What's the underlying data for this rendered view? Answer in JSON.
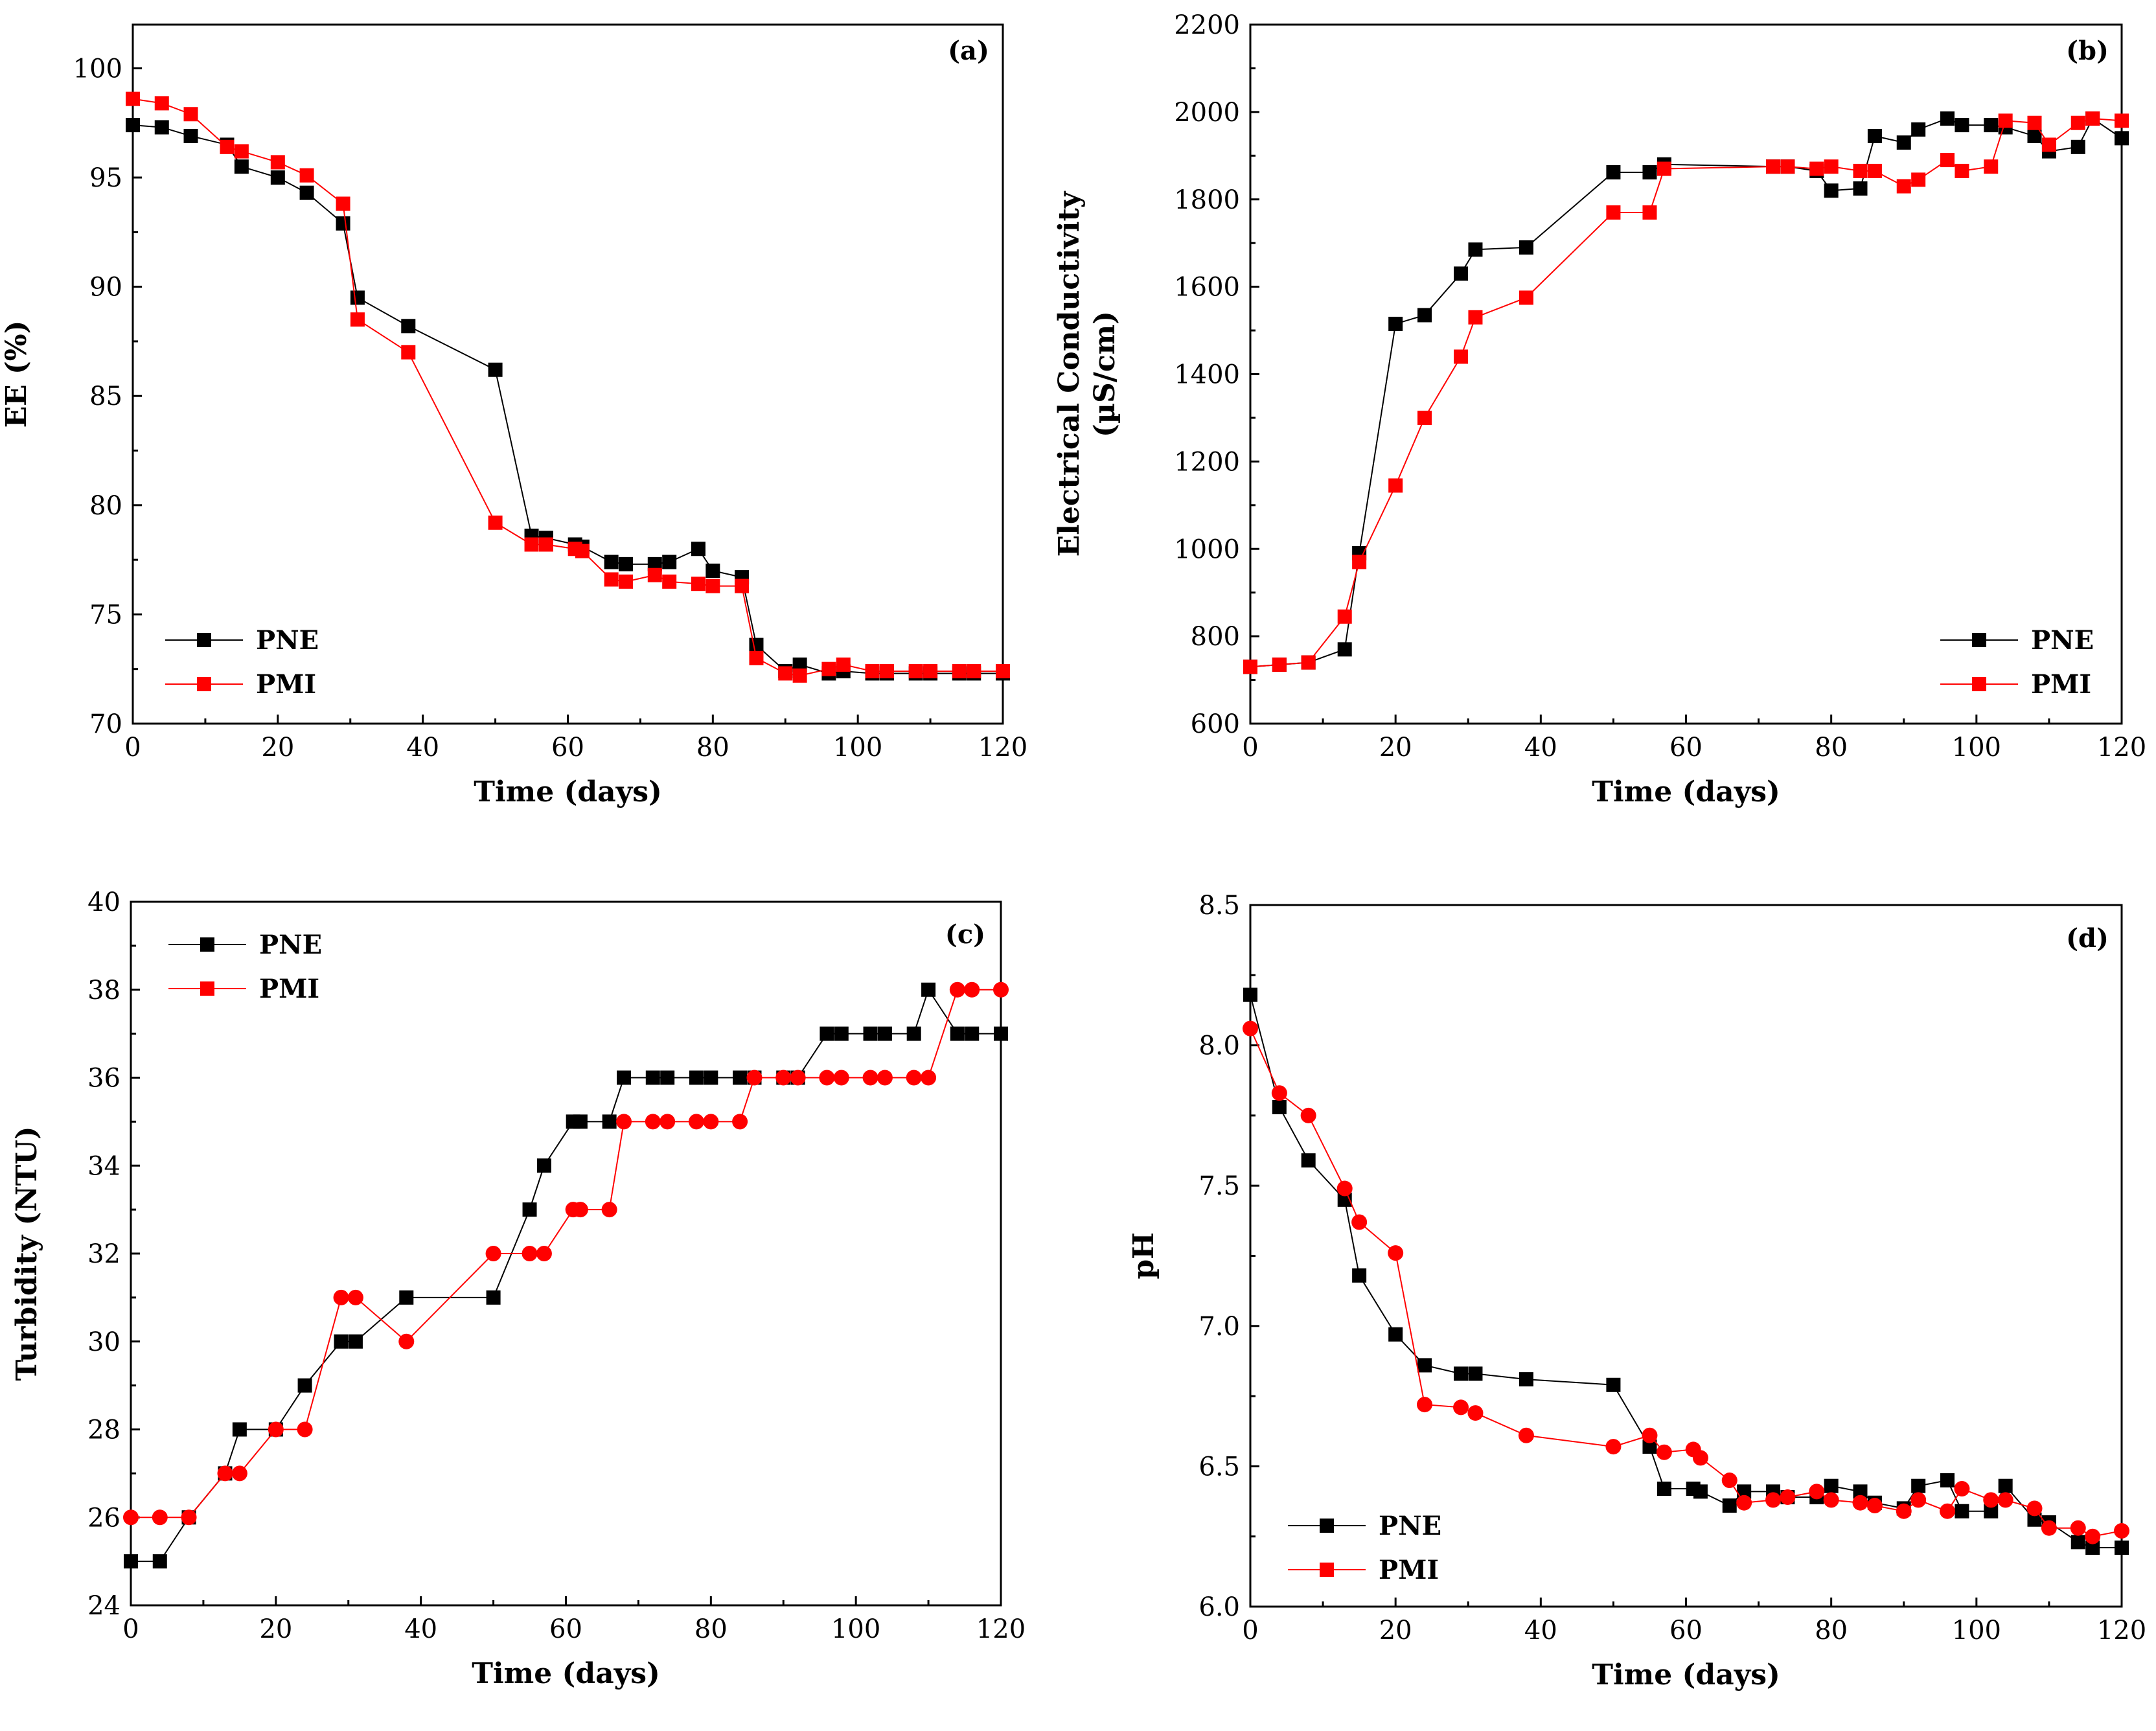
{
  "chart_data": [
    {
      "id": "a",
      "type": "line",
      "panel_label": "(a)",
      "xlabel": "Time (days)",
      "ylabel": [
        "EE (%)"
      ],
      "xlim": [
        0,
        120
      ],
      "ylim": [
        70,
        102
      ],
      "xticks": [
        0,
        20,
        40,
        60,
        80,
        100,
        120
      ],
      "yticks": [
        70,
        75,
        80,
        85,
        90,
        95,
        100
      ],
      "legend_position": "bottom-left",
      "series": [
        {
          "name": "PNE",
          "color": "#000000",
          "marker": "square",
          "x": [
            0,
            4,
            8,
            13,
            15,
            20,
            24,
            29,
            31,
            38,
            50,
            55,
            57,
            61,
            62,
            66,
            68,
            72,
            74,
            78,
            80,
            84,
            86,
            90,
            92,
            96,
            98,
            102,
            104,
            108,
            110,
            114,
            116,
            120
          ],
          "y": [
            97.4,
            97.3,
            96.9,
            96.5,
            95.5,
            95.0,
            94.3,
            92.9,
            89.5,
            88.2,
            86.2,
            78.6,
            78.5,
            78.2,
            78.1,
            77.4,
            77.3,
            77.3,
            77.4,
            78.0,
            77.0,
            76.7,
            73.6,
            72.4,
            72.7,
            72.3,
            72.4,
            72.3,
            72.3,
            72.3,
            72.3,
            72.3,
            72.3,
            72.3
          ]
        },
        {
          "name": "PMI",
          "color": "#ff0000",
          "marker": "square",
          "x": [
            0,
            4,
            8,
            13,
            15,
            20,
            24,
            29,
            31,
            38,
            50,
            55,
            57,
            61,
            62,
            66,
            68,
            72,
            74,
            78,
            80,
            84,
            86,
            90,
            92,
            96,
            98,
            102,
            104,
            108,
            110,
            114,
            116,
            120
          ],
          "y": [
            98.6,
            98.4,
            97.9,
            96.4,
            96.2,
            95.7,
            95.1,
            93.8,
            88.5,
            87.0,
            79.2,
            78.2,
            78.2,
            78.0,
            77.9,
            76.6,
            76.5,
            76.8,
            76.5,
            76.4,
            76.3,
            76.3,
            73.0,
            72.3,
            72.2,
            72.5,
            72.7,
            72.4,
            72.4,
            72.4,
            72.4,
            72.4,
            72.4,
            72.4
          ]
        }
      ]
    },
    {
      "id": "b",
      "type": "line",
      "panel_label": "(b)",
      "xlabel": "Time (days)",
      "ylabel": [
        "Electrical Conductivity",
        "(µS/cm)"
      ],
      "xlim": [
        0,
        120
      ],
      "ylim": [
        600,
        2200
      ],
      "xticks": [
        0,
        20,
        40,
        60,
        80,
        100,
        120
      ],
      "yticks": [
        600,
        800,
        1000,
        1200,
        1400,
        1600,
        1800,
        2000,
        2200
      ],
      "legend_position": "bottom-right",
      "series": [
        {
          "name": "PNE",
          "color": "#000000",
          "marker": "square",
          "x": [
            0,
            4,
            8,
            13,
            15,
            20,
            24,
            29,
            31,
            38,
            50,
            55,
            57,
            72,
            74,
            78,
            80,
            84,
            86,
            90,
            92,
            96,
            98,
            102,
            104,
            108,
            110,
            114,
            116,
            120
          ],
          "y": [
            730,
            735,
            740,
            770,
            990,
            1515,
            1535,
            1630,
            1685,
            1690,
            1862,
            1862,
            1880,
            1875,
            1875,
            1865,
            1820,
            1825,
            1945,
            1930,
            1960,
            1985,
            1970,
            1970,
            1965,
            1945,
            1910,
            1920,
            1985,
            1940
          ]
        },
        {
          "name": "PMI",
          "color": "#ff0000",
          "marker": "square",
          "x": [
            0,
            4,
            8,
            13,
            15,
            20,
            24,
            29,
            31,
            38,
            50,
            55,
            57,
            72,
            74,
            78,
            80,
            84,
            86,
            90,
            92,
            96,
            98,
            102,
            104,
            108,
            110,
            114,
            116,
            120
          ],
          "y": [
            730,
            735,
            740,
            845,
            970,
            1145,
            1300,
            1440,
            1530,
            1575,
            1770,
            1770,
            1870,
            1875,
            1875,
            1870,
            1875,
            1865,
            1865,
            1830,
            1845,
            1890,
            1865,
            1875,
            1980,
            1975,
            1925,
            1975,
            1985,
            1980
          ]
        }
      ]
    },
    {
      "id": "c",
      "type": "line",
      "panel_label": "(c)",
      "xlabel": "Time (days)",
      "ylabel": [
        "Turbidity (NTU)"
      ],
      "xlim": [
        0,
        120
      ],
      "ylim": [
        24,
        40
      ],
      "xticks": [
        0,
        20,
        40,
        60,
        80,
        100,
        120
      ],
      "yticks": [
        24,
        26,
        28,
        30,
        32,
        34,
        36,
        38,
        40
      ],
      "legend_position": "top-left",
      "series": [
        {
          "name": "PNE",
          "color": "#000000",
          "marker": "square",
          "x": [
            0,
            4,
            8,
            13,
            15,
            20,
            24,
            29,
            31,
            38,
            50,
            55,
            57,
            61,
            62,
            66,
            68,
            72,
            74,
            78,
            80,
            84,
            86,
            90,
            92,
            96,
            98,
            102,
            104,
            108,
            110,
            114,
            116,
            120
          ],
          "y": [
            25,
            25,
            26,
            27,
            28,
            28,
            29,
            30,
            30,
            31,
            31,
            33,
            34,
            35,
            35,
            35,
            36,
            36,
            36,
            36,
            36,
            36,
            36,
            36,
            36,
            37,
            37,
            37,
            37,
            37,
            38,
            37,
            37,
            37
          ]
        },
        {
          "name": "PMI",
          "color": "#ff0000",
          "marker": "circle",
          "x": [
            0,
            4,
            8,
            13,
            15,
            20,
            24,
            29,
            31,
            38,
            50,
            55,
            57,
            61,
            62,
            66,
            68,
            72,
            74,
            78,
            80,
            84,
            86,
            90,
            92,
            96,
            98,
            102,
            104,
            108,
            110,
            114,
            116,
            120
          ],
          "y": [
            26,
            26,
            26,
            27,
            27,
            28,
            28,
            31,
            31,
            30,
            32,
            32,
            32,
            33,
            33,
            33,
            35,
            35,
            35,
            35,
            35,
            35,
            36,
            36,
            36,
            36,
            36,
            36,
            36,
            36,
            36,
            38,
            38,
            38
          ]
        }
      ]
    },
    {
      "id": "d",
      "type": "line",
      "panel_label": "(d)",
      "xlabel": "Time (days)",
      "ylabel": [
        "pH"
      ],
      "xlim": [
        0,
        120
      ],
      "ylim": [
        6.0,
        8.5
      ],
      "xticks": [
        0,
        20,
        40,
        60,
        80,
        100,
        120
      ],
      "yticks": [
        6.0,
        6.5,
        7.0,
        7.5,
        8.0,
        8.5
      ],
      "ytick_decimals": 1,
      "legend_position": "bottom-left",
      "series": [
        {
          "name": "PNE",
          "color": "#000000",
          "marker": "square",
          "x": [
            0,
            4,
            8,
            13,
            15,
            20,
            24,
            29,
            31,
            38,
            50,
            55,
            57,
            61,
            62,
            66,
            68,
            72,
            74,
            78,
            80,
            84,
            86,
            90,
            92,
            96,
            98,
            102,
            104,
            108,
            110,
            114,
            116,
            120
          ],
          "y": [
            8.18,
            7.78,
            7.59,
            7.45,
            7.18,
            6.97,
            6.86,
            6.83,
            6.83,
            6.81,
            6.79,
            6.57,
            6.42,
            6.42,
            6.41,
            6.36,
            6.41,
            6.41,
            6.39,
            6.39,
            6.43,
            6.41,
            6.37,
            6.35,
            6.43,
            6.45,
            6.34,
            6.34,
            6.43,
            6.31,
            6.3,
            6.23,
            6.21,
            6.21
          ]
        },
        {
          "name": "PMI",
          "color": "#ff0000",
          "marker": "circle",
          "x": [
            0,
            4,
            8,
            13,
            15,
            20,
            24,
            29,
            31,
            38,
            50,
            55,
            57,
            61,
            62,
            66,
            68,
            72,
            74,
            78,
            80,
            84,
            86,
            90,
            92,
            96,
            98,
            102,
            104,
            108,
            110,
            114,
            116,
            120
          ],
          "y": [
            8.06,
            7.83,
            7.75,
            7.49,
            7.37,
            7.26,
            6.72,
            6.71,
            6.69,
            6.61,
            6.57,
            6.61,
            6.55,
            6.56,
            6.53,
            6.45,
            6.37,
            6.38,
            6.39,
            6.41,
            6.38,
            6.37,
            6.36,
            6.34,
            6.38,
            6.34,
            6.42,
            6.38,
            6.38,
            6.35,
            6.28,
            6.28,
            6.25,
            6.27
          ]
        }
      ]
    }
  ]
}
